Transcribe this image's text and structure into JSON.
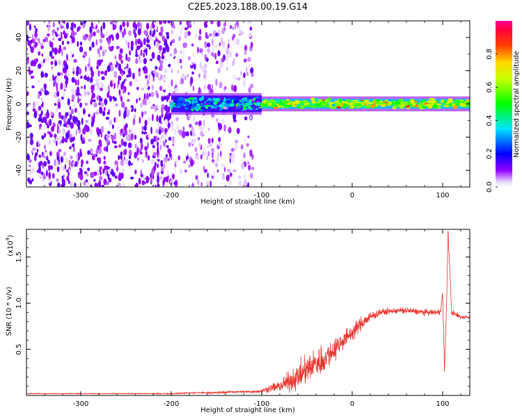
{
  "title": "C2E5.2023.188.00.19.G14",
  "chart_data": [
    {
      "type": "heatmap",
      "title": "C2E5.2023.188.00.19.G14",
      "xlabel": "Height of straight line (km)",
      "ylabel": "Frequency (Hz)",
      "xlim": [
        -360,
        130
      ],
      "ylim": [
        -50,
        50
      ],
      "xticks": [
        -300,
        -200,
        -100,
        0,
        100
      ],
      "xtick_labels": [
        "-300",
        "-200",
        "-100",
        "0",
        "100"
      ],
      "yticks": [
        -40,
        -20,
        0,
        20,
        40
      ],
      "ytick_labels": [
        "-40",
        "-20",
        "0",
        "20",
        "40"
      ],
      "colorbar": {
        "label": "Normalized spectral amplitude",
        "range": [
          0,
          1
        ],
        "ticks": [
          0.0,
          0.2,
          0.4,
          0.6,
          0.8
        ],
        "tick_labels": [
          "0.0",
          "0.2",
          "0.4",
          "0.6",
          "0.8"
        ],
        "colormap": "rainbow (white → violet → blue → cyan → green → yellow → red → magenta)"
      },
      "description_regions": [
        {
          "x_range": [
            -360,
            -200
          ],
          "freq_range": [
            -50,
            50
          ],
          "level": 0.08,
          "note": "noise speckle across all frequencies"
        },
        {
          "x_range": [
            -200,
            -110
          ],
          "freq_range": [
            -50,
            50
          ],
          "level": 0.05,
          "note": "faint noise speckle"
        },
        {
          "x_range": [
            -200,
            -100
          ],
          "freq_range": [
            -5,
            5
          ],
          "level": 0.3,
          "note": "signal near 0 Hz emerging"
        },
        {
          "x_range": [
            -100,
            130
          ],
          "freq_range": [
            -3,
            3
          ],
          "level": 0.6,
          "note": "strong narrow band at 0 Hz, peaks near 0.9"
        }
      ]
    },
    {
      "type": "line",
      "xlabel": "Height of straight line (km)",
      "ylabel": "SNR (10 * v/v)",
      "y_scale_note": "(x10",
      "y_scale_exp": "4",
      "y_scale_close": ")",
      "xlim": [
        -360,
        130
      ],
      "ylim": [
        0,
        1.8
      ],
      "xticks": [
        -300,
        -200,
        -100,
        0,
        100
      ],
      "xtick_labels": [
        "-300",
        "-200",
        "-100",
        "0",
        "100"
      ],
      "yticks": [
        0.5,
        1.0,
        1.5
      ],
      "ytick_labels": [
        "0.5",
        "1.0",
        "1.5"
      ],
      "series": [
        {
          "color": "#e8312a",
          "x": [
            -360,
            -300,
            -250,
            -200,
            -170,
            -150,
            -130,
            -110,
            -100,
            -90,
            -80,
            -70,
            -60,
            -50,
            -40,
            -30,
            -20,
            -10,
            0,
            10,
            20,
            30,
            40,
            50,
            60,
            70,
            80,
            90,
            97,
            100,
            102,
            104,
            106,
            110,
            120,
            130
          ],
          "y": [
            0.02,
            0.02,
            0.02,
            0.02,
            0.03,
            0.03,
            0.04,
            0.04,
            0.05,
            0.08,
            0.1,
            0.15,
            0.2,
            0.28,
            0.35,
            0.4,
            0.5,
            0.6,
            0.68,
            0.78,
            0.85,
            0.9,
            0.91,
            0.92,
            0.92,
            0.91,
            0.9,
            0.9,
            0.9,
            1.1,
            0.28,
            0.85,
            1.78,
            0.9,
            0.85,
            0.85
          ],
          "noise": [
            0.004,
            0.004,
            0.004,
            0.005,
            0.008,
            0.01,
            0.012,
            0.012,
            0.02,
            0.04,
            0.06,
            0.1,
            0.13,
            0.15,
            0.16,
            0.15,
            0.12,
            0.1,
            0.08,
            0.07,
            0.06,
            0.04,
            0.03,
            0.03,
            0.04,
            0.03,
            0.03,
            0.03,
            0.03,
            0.05,
            0.05,
            0.04,
            0.05,
            0.04,
            0.02,
            0.02
          ]
        }
      ]
    }
  ]
}
